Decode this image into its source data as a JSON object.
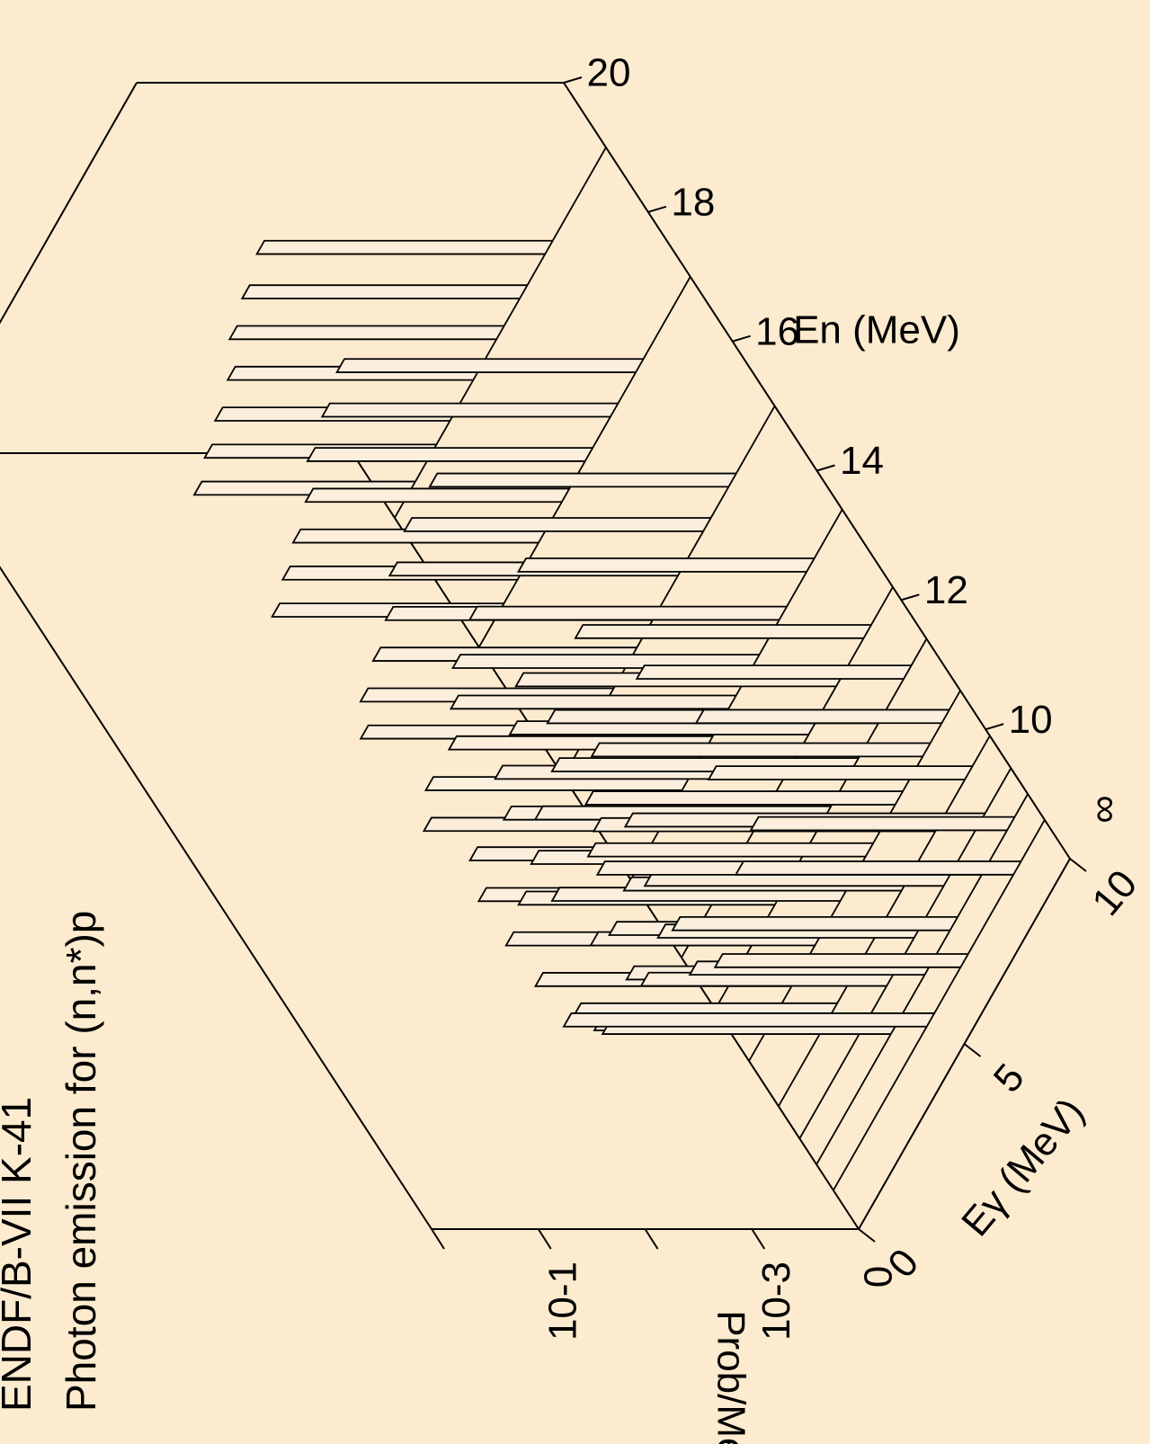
{
  "chart_data": {
    "type": "area",
    "title": "ENDF/B-VII K-41",
    "subtitle": "Photon emission for (n,n*)p",
    "x_axis": {
      "label": "Eγ (MeV)",
      "range": [
        0,
        10
      ],
      "ticks": [
        "0",
        "5",
        "10"
      ]
    },
    "depth_axis": {
      "label": "En (MeV)",
      "range": [
        8,
        20
      ],
      "ticks": [
        "10",
        "12",
        "14",
        "16",
        "18",
        "20"
      ]
    },
    "z_axis": {
      "label": "Prob/MeV",
      "scale": "log",
      "range": [
        -4,
        0
      ],
      "ticks": [
        "10-3",
        "10-1"
      ]
    },
    "series": [
      {
        "en": 8.6,
        "lines": [
          {
            "e": 4.6,
            "lv": -0.6
          },
          {
            "e": 6.2,
            "lv": -1.7
          },
          {
            "e": 8.7,
            "lv": -1.4
          }
        ]
      },
      {
        "en": 9.0,
        "lines": [
          {
            "e": 3.7,
            "lv": -1.3
          },
          {
            "e": 5.3,
            "lv": -1.8
          },
          {
            "e": 6.5,
            "lv": -1.4
          },
          {
            "e": 8.0,
            "lv": -0.4
          },
          {
            "e": 9.2,
            "lv": -1.6
          }
        ]
      },
      {
        "en": 9.4,
        "lines": [
          {
            "e": 3.1,
            "lv": -1.5
          },
          {
            "e": 4.3,
            "lv": -1.7
          },
          {
            "e": 5.6,
            "lv": -1.6
          },
          {
            "e": 7.0,
            "lv": -1.2
          },
          {
            "e": 8.6,
            "lv": -0.7
          }
        ]
      },
      {
        "en": 9.9,
        "lines": [
          {
            "e": 2.6,
            "lv": -1.6
          },
          {
            "e": 3.6,
            "lv": -1.9
          },
          {
            "e": 4.8,
            "lv": -1.5
          },
          {
            "e": 6.0,
            "lv": -1.4
          },
          {
            "e": 7.6,
            "lv": -0.8
          },
          {
            "e": 9.0,
            "lv": -1.6
          }
        ]
      },
      {
        "en": 10.6,
        "lines": [
          {
            "e": 2.2,
            "lv": -1.6
          },
          {
            "e": 3.3,
            "lv": -1.9
          },
          {
            "e": 4.5,
            "lv": -1.3
          },
          {
            "e": 5.7,
            "lv": -1.4
          },
          {
            "e": 7.1,
            "lv": -1.1
          },
          {
            "e": 8.4,
            "lv": -0.9
          },
          {
            "e": 9.3,
            "lv": -1.7
          }
        ]
      },
      {
        "en": 11.4,
        "lines": [
          {
            "e": 1.9,
            "lv": -1.7
          },
          {
            "e": 3.0,
            "lv": -1.6
          },
          {
            "e": 4.1,
            "lv": -1.5
          },
          {
            "e": 5.3,
            "lv": -1.3
          },
          {
            "e": 6.6,
            "lv": -1.2
          },
          {
            "e": 7.9,
            "lv": -0.9
          },
          {
            "e": 9.1,
            "lv": -1.5
          }
        ]
      },
      {
        "en": 12.2,
        "lines": [
          {
            "e": 1.7,
            "lv": -1.8
          },
          {
            "e": 2.8,
            "lv": -1.5
          },
          {
            "e": 3.9,
            "lv": -1.6
          },
          {
            "e": 5.0,
            "lv": -1.3
          },
          {
            "e": 6.2,
            "lv": -1.2
          },
          {
            "e": 7.5,
            "lv": -1.0
          },
          {
            "e": 8.8,
            "lv": -1.3
          }
        ]
      },
      {
        "en": 13.4,
        "lines": [
          {
            "e": 1.5,
            "lv": -1.8
          },
          {
            "e": 2.6,
            "lv": -1.6
          },
          {
            "e": 3.7,
            "lv": -1.6
          },
          {
            "e": 4.8,
            "lv": -1.4
          },
          {
            "e": 5.9,
            "lv": -1.2
          },
          {
            "e": 7.2,
            "lv": -1.1
          },
          {
            "e": 8.5,
            "lv": -1.3
          }
        ]
      },
      {
        "en": 15.0,
        "lines": [
          {
            "e": 1.2,
            "lv": -1.9
          },
          {
            "e": 2.2,
            "lv": -1.7
          },
          {
            "e": 3.3,
            "lv": -1.6
          },
          {
            "e": 4.4,
            "lv": -1.5
          },
          {
            "e": 5.6,
            "lv": -1.3
          },
          {
            "e": 6.8,
            "lv": -1.2
          },
          {
            "e": 8.0,
            "lv": -1.2
          }
        ]
      },
      {
        "en": 17.0,
        "lines": [
          {
            "e": 1.0,
            "lv": -1.9
          },
          {
            "e": 2.0,
            "lv": -1.8
          },
          {
            "e": 3.0,
            "lv": -1.7
          },
          {
            "e": 4.1,
            "lv": -1.6
          },
          {
            "e": 5.2,
            "lv": -1.4
          },
          {
            "e": 6.4,
            "lv": -1.3
          },
          {
            "e": 7.6,
            "lv": -1.2
          }
        ]
      },
      {
        "en": 19.0,
        "lines": [
          {
            "e": 0.8,
            "lv": -2.0
          },
          {
            "e": 1.8,
            "lv": -1.9
          },
          {
            "e": 2.8,
            "lv": -1.8
          },
          {
            "e": 3.9,
            "lv": -1.7
          },
          {
            "e": 5.0,
            "lv": -1.5
          },
          {
            "e": 6.1,
            "lv": -1.4
          },
          {
            "e": 7.3,
            "lv": -1.3
          }
        ]
      }
    ]
  }
}
